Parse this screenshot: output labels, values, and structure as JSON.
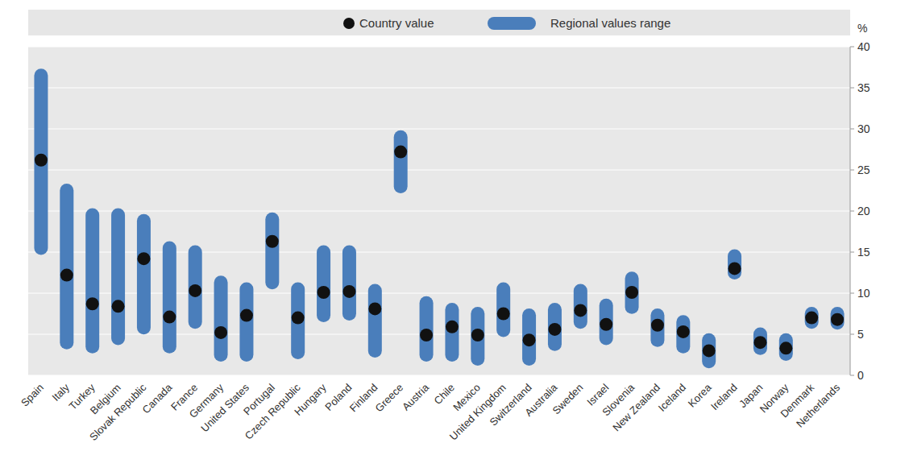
{
  "chart_data": {
    "type": "range",
    "y_label": "%",
    "categories": [
      "Spain",
      "Italy",
      "Turkey",
      "Belgium",
      "Slovak Republic",
      "Canada",
      "France",
      "Germany",
      "United States",
      "Portugal",
      "Czech Republic",
      "Hungary",
      "Poland",
      "Finland",
      "Greece",
      "Austria",
      "Chile",
      "Mexico",
      "United Kingdom",
      "Switzerland",
      "Australia",
      "Sweden",
      "Israel",
      "Slovenia",
      "New Zealand",
      "Iceland",
      "Korea",
      "Ireland",
      "Japan",
      "Norway",
      "Denmark",
      "Netherlands"
    ],
    "series": [
      {
        "name": "Country value",
        "color": "#111111",
        "marker": "circle",
        "values": [
          26.2,
          12.2,
          8.7,
          8.4,
          14.2,
          7.1,
          10.3,
          5.2,
          7.3,
          16.3,
          7.0,
          10.1,
          10.2,
          8.1,
          27.2,
          4.9,
          5.9,
          4.9,
          7.5,
          4.3,
          5.6,
          7.9,
          6.2,
          10.1,
          6.1,
          5.3,
          3.0,
          13.0,
          4.0,
          3.3,
          7.0,
          6.8
        ]
      },
      {
        "name": "Regional values range",
        "color": "#4a7ebb",
        "low": [
          15.5,
          4.0,
          3.5,
          4.5,
          5.8,
          3.5,
          6.5,
          2.5,
          2.5,
          11.3,
          2.8,
          7.3,
          7.5,
          3.0,
          23.0,
          2.5,
          2.5,
          2.0,
          5.5,
          2.0,
          3.8,
          6.5,
          4.5,
          8.3,
          4.3,
          3.5,
          1.7,
          12.5,
          3.3,
          2.6,
          6.5,
          6.4
        ],
        "high": [
          36.5,
          22.5,
          19.5,
          19.5,
          18.8,
          15.5,
          15.0,
          11.3,
          10.5,
          19.0,
          10.5,
          15.0,
          15.0,
          10.3,
          29.0,
          8.8,
          8.0,
          7.5,
          10.5,
          7.3,
          8.0,
          10.3,
          8.5,
          11.8,
          7.3,
          6.5,
          4.3,
          14.5,
          5.0,
          4.3,
          7.5,
          7.5
        ]
      }
    ],
    "ylim": [
      0,
      40
    ],
    "yticks": [
      0,
      5,
      10,
      15,
      20,
      25,
      30,
      35,
      40
    ],
    "grid": true,
    "legend": "top"
  }
}
